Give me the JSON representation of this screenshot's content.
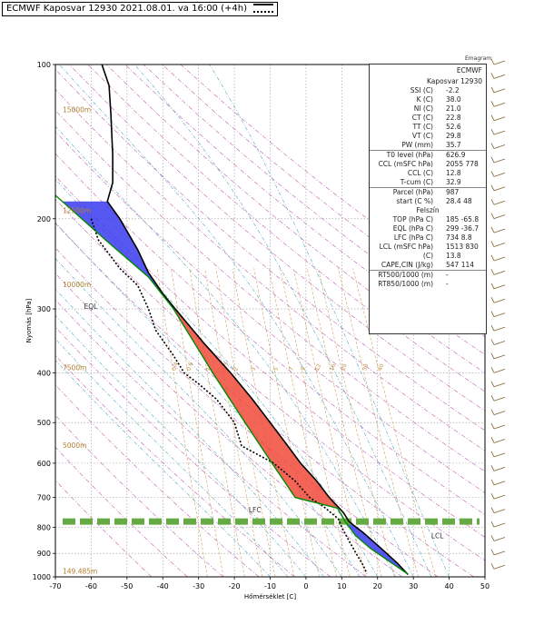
{
  "legend": {
    "label": "ECMWF Kaposvar 12930 2021.08.01. va 16:00 (+4h)"
  },
  "corner_label": "Emagram",
  "info": {
    "header1": "ECMWF",
    "header2": "Kaposvar 12930",
    "rows1": [
      {
        "k": "SSI (C)",
        "v": "-2.2"
      },
      {
        "k": "K (C)",
        "v": "38.0"
      },
      {
        "k": "NI (C)",
        "v": "21.0"
      },
      {
        "k": "CT (C)",
        "v": "22.8"
      },
      {
        "k": "TT (C)",
        "v": "52.6"
      },
      {
        "k": "VT (C)",
        "v": "29.8"
      },
      {
        "k": "PW (mm)",
        "v": "35.7"
      }
    ],
    "rows2": [
      {
        "k": "T0 level (hPa)",
        "v": "626.9"
      },
      {
        "k": "CCL (mSFC hPa)",
        "v": "2055  778"
      },
      {
        "k": "CCL (C)",
        "v": "12.8"
      },
      {
        "k": "T-cum (C)",
        "v": "32.9"
      }
    ],
    "rows3a": [
      {
        "k": "Parcel  (hPa)",
        "v": "987"
      },
      {
        "k": "start (C  %)",
        "v": "28.4  48"
      }
    ],
    "felszin": "Felszín",
    "rows3b": [
      {
        "k": "TOP (hPa  C)",
        "v": "185  -65.8"
      },
      {
        "k": "EQL (hPa  C)",
        "v": "299  -36.7"
      },
      {
        "k": "LFC (hPa  C)",
        "v": "734  8.8"
      },
      {
        "k": "LCL (mSFC hPa)",
        "v": "1513  830"
      },
      {
        "k": "(C)",
        "v": "13.8"
      },
      {
        "k": "CAPE,CIN (J/kg)",
        "v": "547  114"
      }
    ],
    "rows4": [
      {
        "k": "RT500/1000 (m)",
        "v": "-"
      },
      {
        "k": "RT850/1000 (m)",
        "v": "-"
      }
    ]
  },
  "chart_data": {
    "type": "line",
    "xlabel": "Hőmérséklet [C]",
    "ylabel": "Nyomás [hPa]",
    "xlim": [
      -70,
      50
    ],
    "ylim": [
      1000,
      100
    ],
    "y_scale": "log",
    "x_ticks": [
      -70,
      -60,
      -50,
      -40,
      -30,
      -20,
      -10,
      0,
      10,
      20,
      30,
      40,
      50
    ],
    "y_ticks": [
      100,
      200,
      300,
      400,
      500,
      600,
      700,
      800,
      900,
      1000
    ],
    "height_labels": [
      {
        "text": "15000m",
        "p": 124
      },
      {
        "text": "12500m",
        "p": 195
      },
      {
        "text": "10000m",
        "p": 272
      },
      {
        "text": "7500m",
        "p": 395
      },
      {
        "text": "5000m",
        "p": 560
      },
      {
        "text": "149.485m",
        "p": 985
      }
    ],
    "annotations": [
      {
        "text": "EQL",
        "t": -62,
        "p": 300
      },
      {
        "text": "LFC",
        "t": -16,
        "p": 748
      },
      {
        "text": "LCL",
        "t": 35,
        "p": 840
      }
    ],
    "mixing_ratio_labels": [
      "0.4",
      "0.6",
      "1.0",
      "1.5",
      "2.0",
      "3.0",
      "5.0",
      "7.0",
      "9.0",
      "12.0",
      "16.0",
      "20.0",
      "30.0",
      "40.0"
    ],
    "series": [
      {
        "name": "temperature",
        "color": "#000000",
        "style": "solid",
        "points": [
          [
            -57,
            100
          ],
          [
            -55,
            110
          ],
          [
            -54.5,
            125
          ],
          [
            -54,
            150
          ],
          [
            -54,
            170
          ],
          [
            -55.5,
            185
          ],
          [
            -52,
            200
          ],
          [
            -47,
            230
          ],
          [
            -44,
            255
          ],
          [
            -40,
            280
          ],
          [
            -36.5,
            300
          ],
          [
            -28.5,
            350
          ],
          [
            -21,
            400
          ],
          [
            -15,
            450
          ],
          [
            -10,
            500
          ],
          [
            -5.5,
            550
          ],
          [
            -1.5,
            600
          ],
          [
            3,
            650
          ],
          [
            6.5,
            700
          ],
          [
            10.5,
            750
          ],
          [
            12,
            780
          ],
          [
            16,
            820
          ],
          [
            21,
            880
          ],
          [
            25.5,
            940
          ],
          [
            28.5,
            990
          ]
        ]
      },
      {
        "name": "dewpoint",
        "color": "#000000",
        "style": "dotted",
        "points": [
          [
            -60,
            200
          ],
          [
            -58,
            220
          ],
          [
            -52,
            250
          ],
          [
            -47,
            270
          ],
          [
            -44,
            300
          ],
          [
            -42,
            330
          ],
          [
            -37,
            370
          ],
          [
            -34,
            400
          ],
          [
            -30,
            420
          ],
          [
            -25,
            450
          ],
          [
            -20,
            500
          ],
          [
            -18,
            555
          ],
          [
            -9,
            600
          ],
          [
            -3,
            650
          ],
          [
            1,
            700
          ],
          [
            5,
            730
          ],
          [
            9,
            770
          ],
          [
            10,
            800
          ],
          [
            12,
            850
          ],
          [
            14,
            900
          ],
          [
            16,
            950
          ],
          [
            17,
            985
          ]
        ]
      },
      {
        "name": "parcel",
        "color": "#008800",
        "style": "solid",
        "points": [
          [
            -70,
            180
          ],
          [
            -56,
            220
          ],
          [
            -44,
            260
          ],
          [
            -37,
            300
          ],
          [
            -26,
            400
          ],
          [
            -17,
            500
          ],
          [
            -9.5,
            600
          ],
          [
            -3,
            700
          ],
          [
            8.8,
            734
          ],
          [
            11,
            780
          ],
          [
            13.8,
            830
          ],
          [
            18,
            880
          ],
          [
            23,
            930
          ],
          [
            28.4,
            987
          ]
        ]
      }
    ],
    "zero_line_hpa": 780
  }
}
